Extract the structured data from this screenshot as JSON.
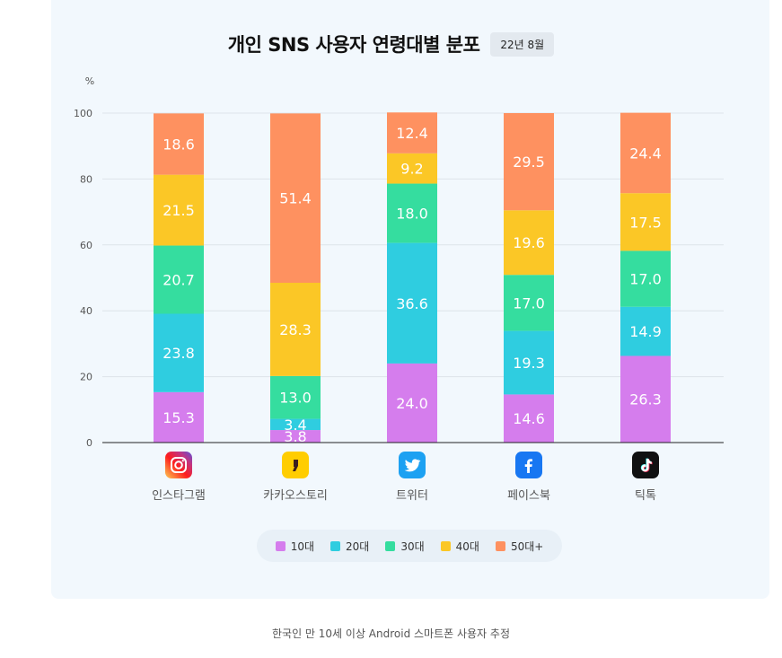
{
  "header": {
    "title": "개인 SNS 사용자 연령대별 분포",
    "date_badge": "22년 8월"
  },
  "footnote": "한국인 만 10세 이상 Android 스마트폰 사용자 추정",
  "colors": {
    "10대": "#d57ded",
    "20대": "#2fcde0",
    "30대": "#35dd9f",
    "40대": "#fbc726",
    "50대+": "#fe9160"
  },
  "icons": {
    "인스타그램": "instagram-icon",
    "카카오스토리": "kakaostory-icon",
    "트위터": "twitter-icon",
    "페이스북": "facebook-icon",
    "틱톡": "tiktok-icon"
  },
  "chart_data": {
    "type": "bar",
    "stacked": true,
    "ylabel": "%",
    "ylim": [
      0,
      100
    ],
    "yticks": [
      0,
      20,
      40,
      60,
      80,
      100
    ],
    "grid": true,
    "legend_position": "bottom",
    "categories": [
      "인스타그램",
      "카카오스토리",
      "트위터",
      "페이스북",
      "틱톡"
    ],
    "series": [
      {
        "name": "10대",
        "values": [
          15.3,
          3.8,
          24.0,
          14.6,
          26.3
        ]
      },
      {
        "name": "20대",
        "values": [
          23.8,
          3.4,
          36.6,
          19.3,
          14.9
        ]
      },
      {
        "name": "30대",
        "values": [
          20.7,
          13.0,
          18.0,
          17.0,
          17.0
        ]
      },
      {
        "name": "40대",
        "values": [
          21.5,
          28.3,
          9.2,
          19.6,
          17.5
        ]
      },
      {
        "name": "50대+",
        "values": [
          18.6,
          51.4,
          12.4,
          29.5,
          24.4
        ]
      }
    ]
  }
}
